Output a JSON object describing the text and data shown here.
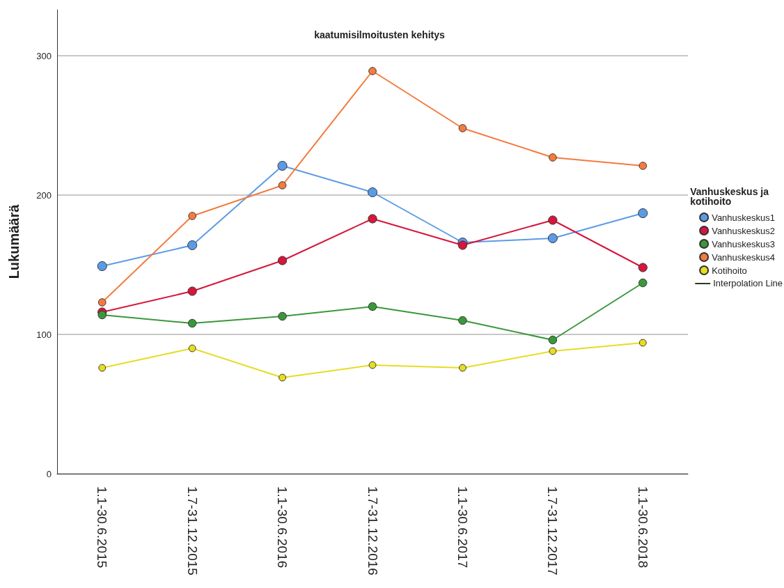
{
  "chart_data": {
    "type": "line",
    "title": "kaatumisilmoitusten kehitys",
    "ylabel": "Lukumäärä",
    "legend_title": "Vanhuskeskus ja\nkotihoito",
    "categories": [
      "1.1-30.6.2015",
      "1.7-31.12.2015",
      "1.1-30.6.2016",
      "1.7-31.12.2016",
      "1.1-30.6.2017",
      "1.7-31.12.2017",
      "1.1-30.6.2018"
    ],
    "series": [
      {
        "name": "Vanhuskeskus1",
        "color": "#5b9be6",
        "values": [
          149,
          164,
          221,
          202,
          166,
          169,
          187
        ]
      },
      {
        "name": "Vanhuskeskus2",
        "color": "#d6163c",
        "values": [
          116,
          131,
          153,
          183,
          164,
          182,
          148
        ]
      },
      {
        "name": "Vanhuskeskus3",
        "color": "#3a983a",
        "values": [
          114,
          108,
          113,
          120,
          110,
          96,
          137
        ]
      },
      {
        "name": "Vanhuskeskus4",
        "color": "#f47b3e",
        "values": [
          123,
          185,
          207,
          289,
          248,
          227,
          221
        ]
      },
      {
        "name": "Kotihoito",
        "color": "#e6dc22",
        "values": [
          76,
          90,
          69,
          78,
          76,
          88,
          94
        ]
      }
    ],
    "annotations": [
      "Interpolation Line"
    ],
    "ylim": [
      0,
      333
    ],
    "yticks": [
      0,
      100,
      200,
      300
    ],
    "grid": "y",
    "legend": "right",
    "marker": "circle",
    "line_style": "solid"
  }
}
